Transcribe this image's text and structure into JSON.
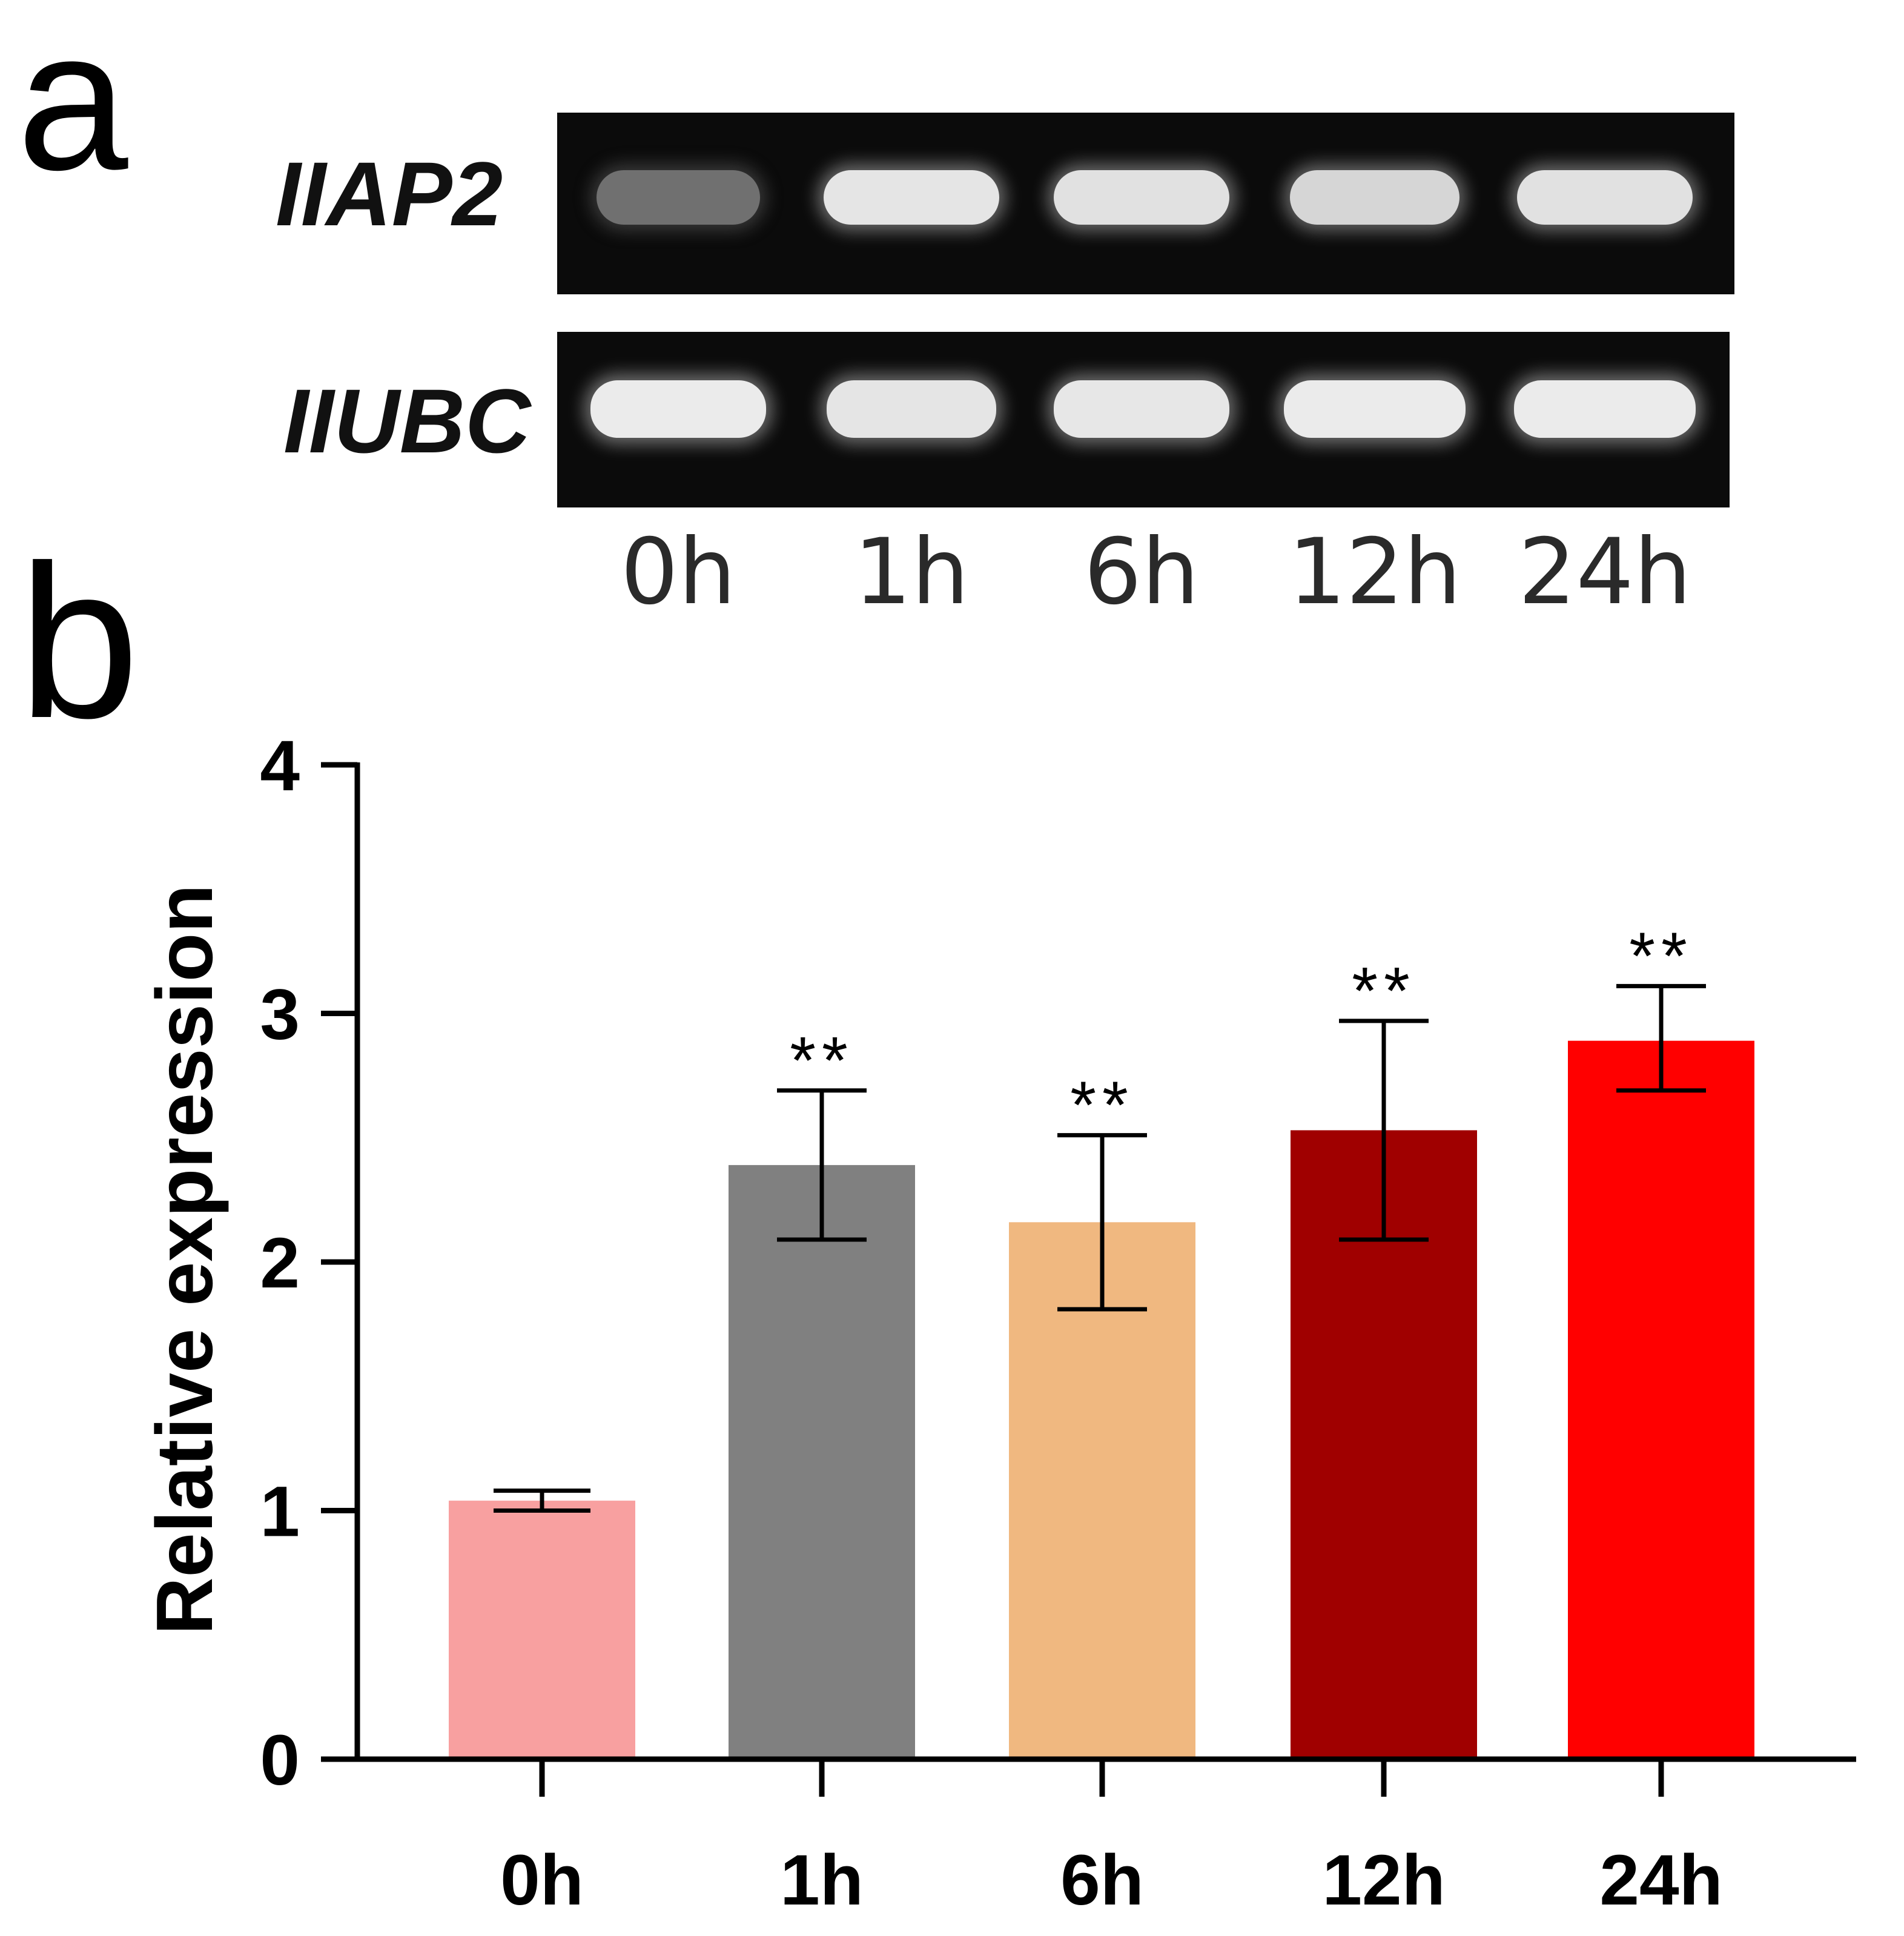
{
  "panel_a": {
    "letter": "a",
    "gene_top": "IIAP2",
    "gene_bottom": "IIUBC",
    "lanes": [
      "0h",
      "1h",
      "6h",
      "12h",
      "24h"
    ],
    "iiap2_band_intensity": [
      0.35,
      0.92,
      0.9,
      0.85,
      0.9
    ],
    "iiubc_band_intensity": [
      0.95,
      0.92,
      0.93,
      0.95,
      0.95
    ]
  },
  "panel_b": {
    "letter": "b"
  },
  "chart_data": {
    "type": "bar",
    "categories": [
      "0h",
      "1h",
      "6h",
      "12h",
      "24h"
    ],
    "values": [
      1.04,
      2.39,
      2.16,
      2.53,
      2.89
    ],
    "error_high": [
      1.08,
      2.69,
      2.51,
      2.97,
      3.11
    ],
    "error_low": [
      1.0,
      2.09,
      1.81,
      2.09,
      2.69
    ],
    "significance": [
      "",
      "**",
      "**",
      "**",
      "**"
    ],
    "colors": [
      "#f8a0a0",
      "#808080",
      "#f0b880",
      "#a00000",
      "#ff0000"
    ],
    "ylabel": "Relative expression",
    "xlabel": "",
    "ylim": [
      0,
      4
    ],
    "yticks": [
      "0",
      "1",
      "2",
      "3",
      "4"
    ],
    "grid": false
  }
}
